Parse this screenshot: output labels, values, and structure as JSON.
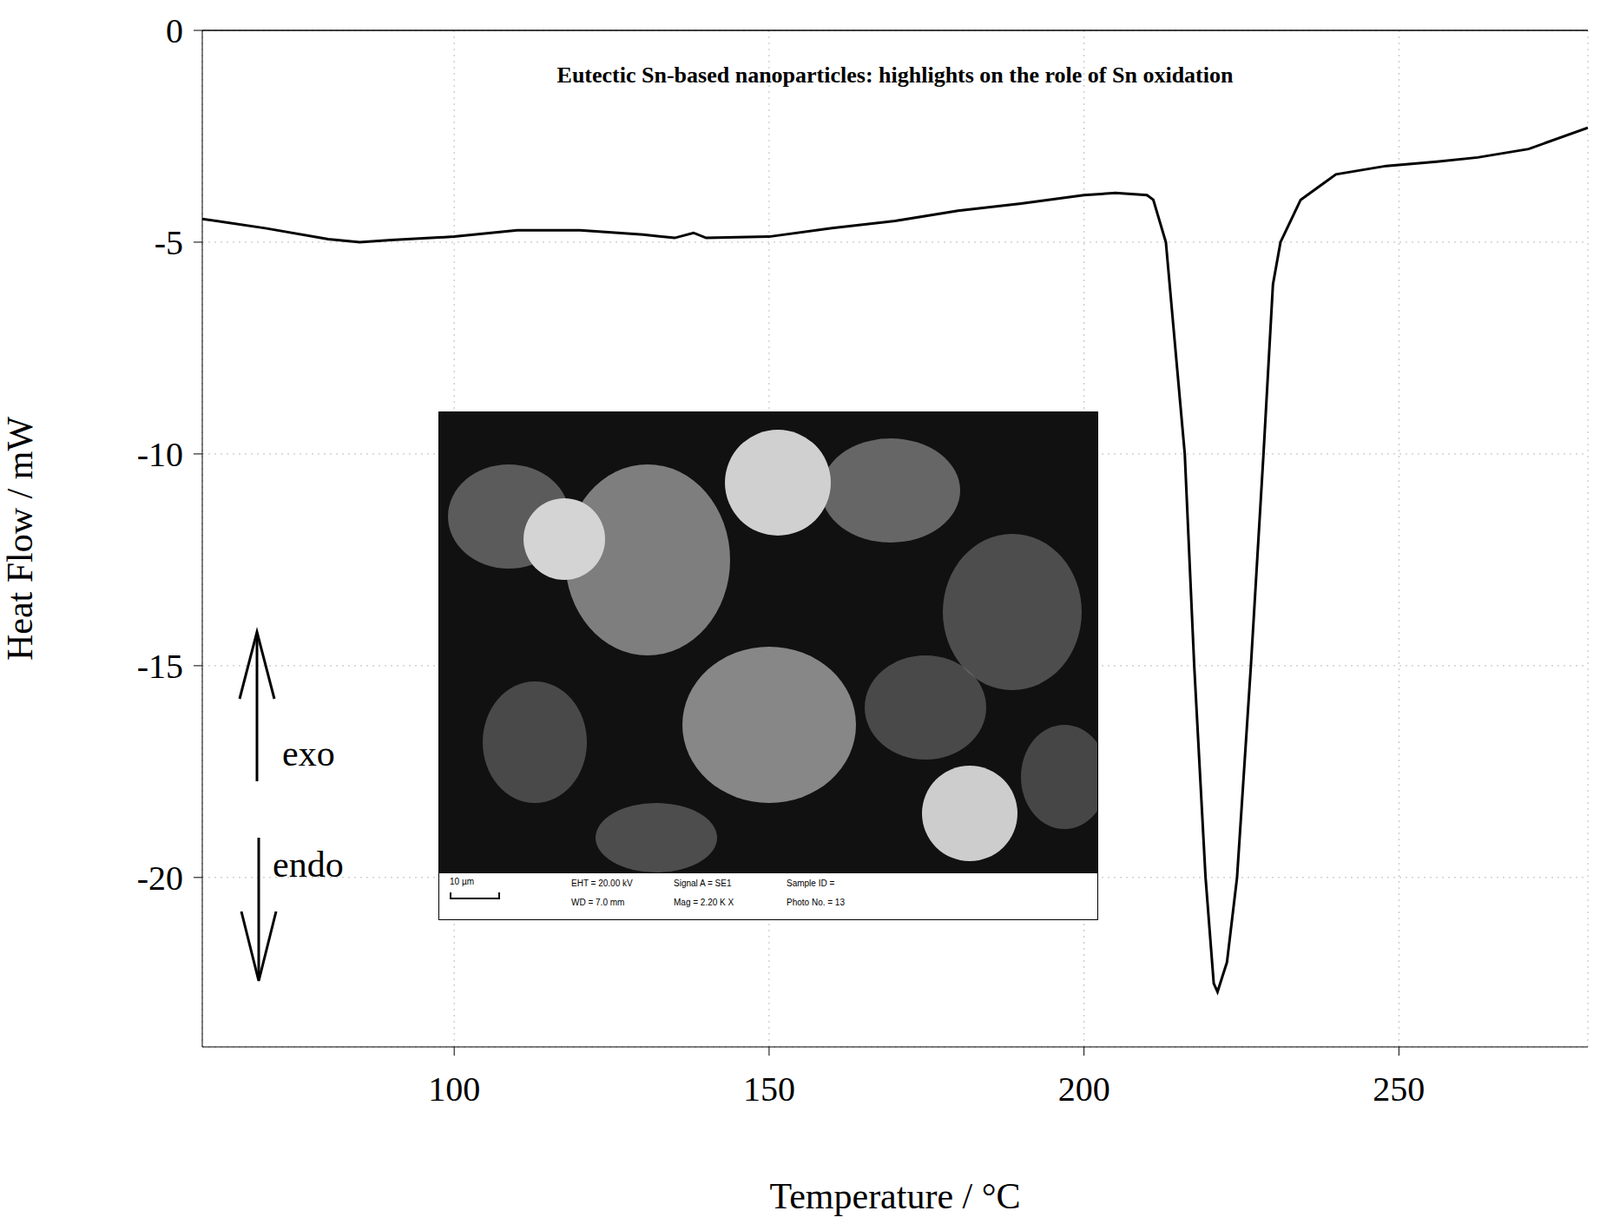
{
  "chart_data": {
    "type": "line",
    "title": "Eutectic Sn-based nanoparticles: highlights on the role of Sn oxidation",
    "x_label": "Temperature / °C",
    "y_label": "Heat Flow / mW",
    "x": [
      60,
      70,
      80,
      85,
      90,
      100,
      110,
      120,
      130,
      135,
      138,
      140,
      150,
      160,
      170,
      180,
      190,
      200,
      205,
      210,
      211,
      213,
      214.8,
      216,
      217.5,
      219.3,
      220.6,
      221.2,
      222.7,
      224.3,
      226.5,
      228.5,
      230,
      231.2,
      234.4,
      240,
      248,
      256,
      262.5,
      270.6,
      280
    ],
    "values": [
      -4.45,
      -4.67,
      -4.93,
      -5.0,
      -4.95,
      -4.87,
      -4.72,
      -4.72,
      -4.82,
      -4.9,
      -4.78,
      -4.9,
      -4.87,
      -4.67,
      -4.5,
      -4.26,
      -4.09,
      -3.89,
      -3.84,
      -3.89,
      -4.0,
      -5.0,
      -8.0,
      -10.0,
      -15.0,
      -20.0,
      -22.5,
      -22.7,
      -22.0,
      -20.0,
      -15.0,
      -10.0,
      -6.0,
      -5.0,
      -4.0,
      -3.4,
      -3.2,
      -3.1,
      -3.0,
      -2.8,
      -2.3
    ],
    "color": "#000000",
    "xlim": [
      60,
      280
    ],
    "ylim": [
      -24,
      0
    ],
    "xticks": [
      100,
      150,
      200,
      250
    ],
    "yticks": [
      0,
      -5,
      -10,
      -15,
      -20
    ],
    "grid": true,
    "annotations": [
      "exo",
      "endo"
    ],
    "inset": {
      "scale_bar": "10 µm",
      "info": [
        "EHT = 20.00 kV",
        "Signal A = SE1",
        "Sample ID =",
        "WD = 7.0 mm",
        "Mag = 2.20 K X",
        "Photo No. = 13"
      ]
    }
  }
}
